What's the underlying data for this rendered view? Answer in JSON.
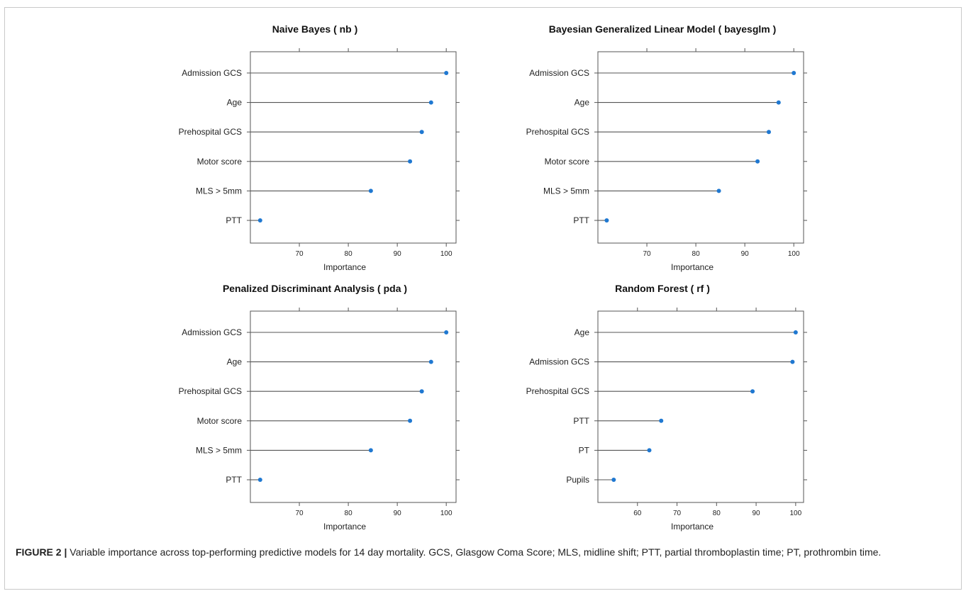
{
  "chart_data": [
    {
      "type": "dot",
      "title": "Naive Bayes ( nb )",
      "xlabel": "Importance",
      "ylabel": "",
      "xticks": [
        70,
        80,
        90,
        100
      ],
      "xlim": [
        60,
        102
      ],
      "categories": [
        "Admission GCS",
        "Age",
        "Prehospital GCS",
        "Motor score",
        "MLS > 5mm",
        "PTT"
      ],
      "values": [
        100,
        96.9,
        95.0,
        92.6,
        84.6,
        62.0
      ],
      "color": "#1f78d1"
    },
    {
      "type": "dot",
      "title": "Bayesian Generalized Linear Model ( bayesglm )",
      "xlabel": "Importance",
      "ylabel": "",
      "xticks": [
        70,
        80,
        90,
        100
      ],
      "xlim": [
        60,
        102
      ],
      "categories": [
        "Admission GCS",
        "Age",
        "Prehospital GCS",
        "Motor score",
        "MLS > 5mm",
        "PTT"
      ],
      "values": [
        100,
        96.9,
        94.9,
        92.6,
        84.7,
        61.8
      ],
      "color": "#1f78d1"
    },
    {
      "type": "dot",
      "title": "Penalized Discriminant Analysis ( pda )",
      "xlabel": "Importance",
      "ylabel": "",
      "xticks": [
        70,
        80,
        90,
        100
      ],
      "xlim": [
        60,
        102
      ],
      "categories": [
        "Admission GCS",
        "Age",
        "Prehospital GCS",
        "Motor score",
        "MLS > 5mm",
        "PTT"
      ],
      "values": [
        100,
        96.9,
        95.0,
        92.6,
        84.6,
        62.0
      ],
      "color": "#1f78d1"
    },
    {
      "type": "dot",
      "title": "Random Forest ( rf )",
      "xlabel": "Importance",
      "ylabel": "",
      "xticks": [
        60,
        70,
        80,
        90,
        100
      ],
      "xlim": [
        50,
        102
      ],
      "categories": [
        "Age",
        "Admission GCS",
        "Prehospital GCS",
        "PTT",
        "PT",
        "Pupils"
      ],
      "values": [
        100,
        99.2,
        89.1,
        66.0,
        63.0,
        54.0
      ],
      "color": "#1f78d1"
    }
  ],
  "caption": {
    "label": "FIGURE 2 |",
    "text": "Variable importance across top-performing predictive models for 14 day mortality. GCS, Glasgow Coma Score; MLS, midline shift; PTT, partial thromboplastin time; PT, prothrombin time."
  }
}
